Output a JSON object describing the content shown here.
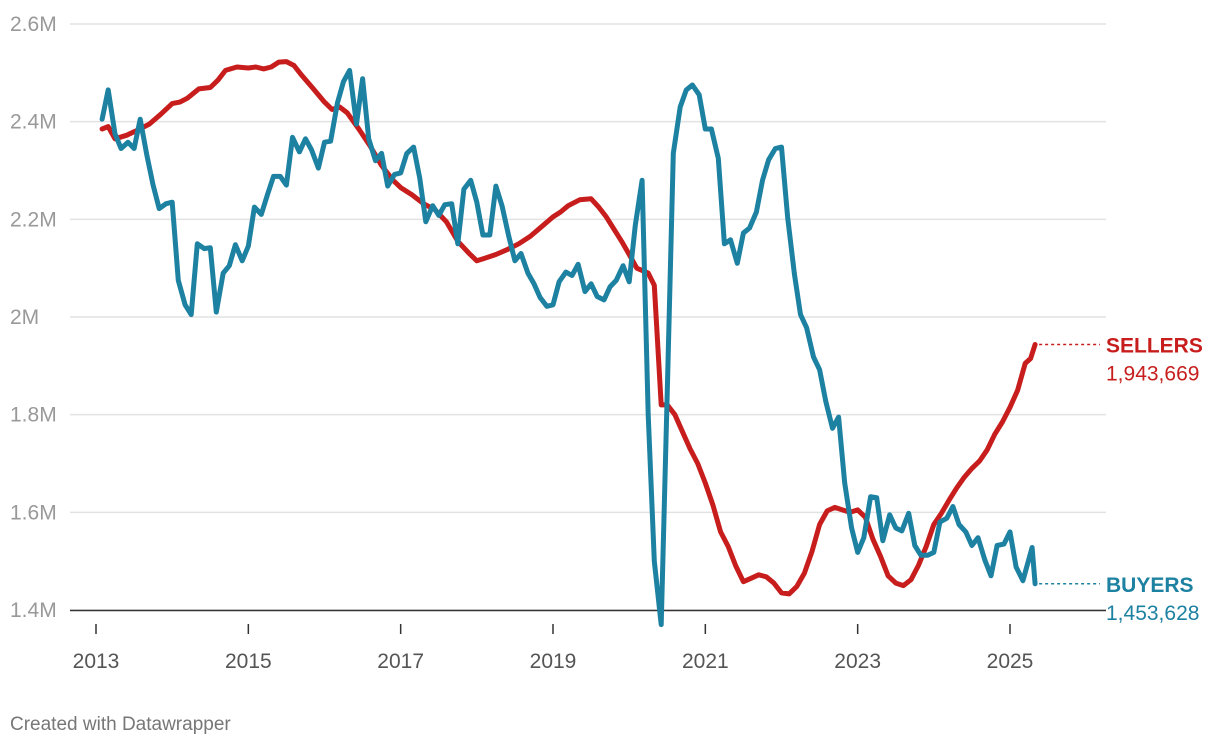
{
  "chart_data": {
    "type": "line",
    "ylim": [
      1400000,
      2600000
    ],
    "y_ticks": [
      {
        "value": 1400000,
        "label": "1.4M"
      },
      {
        "value": 1600000,
        "label": "1.6M"
      },
      {
        "value": 1800000,
        "label": "1.8M"
      },
      {
        "value": 2000000,
        "label": "2M"
      },
      {
        "value": 2200000,
        "label": "2.2M"
      },
      {
        "value": 2400000,
        "label": "2.4M"
      },
      {
        "value": 2600000,
        "label": "2.6M"
      }
    ],
    "xlim": [
      2012.6,
      2026.1
    ],
    "x_ticks": [
      {
        "value": 2013,
        "label": "2013"
      },
      {
        "value": 2015,
        "label": "2015"
      },
      {
        "value": 2017,
        "label": "2017"
      },
      {
        "value": 2019,
        "label": "2019"
      },
      {
        "value": 2021,
        "label": "2021"
      },
      {
        "value": 2023,
        "label": "2023"
      },
      {
        "value": 2025,
        "label": "2025"
      }
    ],
    "series": [
      {
        "name": "SELLERS",
        "end_value_label": "1,943,669",
        "color": "#c71e1d",
        "points": [
          [
            2013.08,
            2385000
          ],
          [
            2013.16,
            2390000
          ],
          [
            2013.25,
            2365000
          ],
          [
            2013.4,
            2372000
          ],
          [
            2013.55,
            2383000
          ],
          [
            2013.7,
            2395000
          ],
          [
            2013.85,
            2415000
          ],
          [
            2014.0,
            2437000
          ],
          [
            2014.1,
            2440000
          ],
          [
            2014.2,
            2448000
          ],
          [
            2014.35,
            2467000
          ],
          [
            2014.5,
            2470000
          ],
          [
            2014.6,
            2485000
          ],
          [
            2014.7,
            2505000
          ],
          [
            2014.85,
            2512000
          ],
          [
            2015.0,
            2510000
          ],
          [
            2015.1,
            2512000
          ],
          [
            2015.2,
            2508000
          ],
          [
            2015.3,
            2512000
          ],
          [
            2015.4,
            2522000
          ],
          [
            2015.5,
            2523000
          ],
          [
            2015.6,
            2515000
          ],
          [
            2015.7,
            2495000
          ],
          [
            2015.85,
            2468000
          ],
          [
            2016.0,
            2440000
          ],
          [
            2016.1,
            2425000
          ],
          [
            2016.2,
            2430000
          ],
          [
            2016.3,
            2418000
          ],
          [
            2016.45,
            2385000
          ],
          [
            2016.6,
            2350000
          ],
          [
            2016.75,
            2310000
          ],
          [
            2016.9,
            2280000
          ],
          [
            2017.0,
            2265000
          ],
          [
            2017.15,
            2250000
          ],
          [
            2017.3,
            2232000
          ],
          [
            2017.45,
            2220000
          ],
          [
            2017.6,
            2195000
          ],
          [
            2017.75,
            2155000
          ],
          [
            2017.9,
            2130000
          ],
          [
            2018.0,
            2115000
          ],
          [
            2018.1,
            2120000
          ],
          [
            2018.25,
            2128000
          ],
          [
            2018.4,
            2138000
          ],
          [
            2018.55,
            2150000
          ],
          [
            2018.7,
            2165000
          ],
          [
            2018.85,
            2185000
          ],
          [
            2019.0,
            2205000
          ],
          [
            2019.1,
            2215000
          ],
          [
            2019.2,
            2228000
          ],
          [
            2019.35,
            2240000
          ],
          [
            2019.5,
            2242000
          ],
          [
            2019.6,
            2225000
          ],
          [
            2019.7,
            2205000
          ],
          [
            2019.8,
            2180000
          ],
          [
            2019.9,
            2155000
          ],
          [
            2020.0,
            2128000
          ],
          [
            2020.1,
            2100000
          ],
          [
            2020.25,
            2090000
          ],
          [
            2020.33,
            2065000
          ],
          [
            2020.42,
            1820000
          ],
          [
            2020.5,
            1820000
          ],
          [
            2020.6,
            1800000
          ],
          [
            2020.7,
            1765000
          ],
          [
            2020.8,
            1730000
          ],
          [
            2020.9,
            1700000
          ],
          [
            2021.0,
            1660000
          ],
          [
            2021.1,
            1615000
          ],
          [
            2021.2,
            1560000
          ],
          [
            2021.3,
            1530000
          ],
          [
            2021.4,
            1490000
          ],
          [
            2021.5,
            1458000
          ],
          [
            2021.6,
            1465000
          ],
          [
            2021.7,
            1472000
          ],
          [
            2021.8,
            1468000
          ],
          [
            2021.9,
            1455000
          ],
          [
            2022.0,
            1435000
          ],
          [
            2022.1,
            1433000
          ],
          [
            2022.2,
            1448000
          ],
          [
            2022.3,
            1475000
          ],
          [
            2022.4,
            1520000
          ],
          [
            2022.5,
            1575000
          ],
          [
            2022.6,
            1603000
          ],
          [
            2022.7,
            1610000
          ],
          [
            2022.8,
            1605000
          ],
          [
            2022.9,
            1600000
          ],
          [
            2023.0,
            1605000
          ],
          [
            2023.1,
            1590000
          ],
          [
            2023.2,
            1545000
          ],
          [
            2023.3,
            1510000
          ],
          [
            2023.4,
            1470000
          ],
          [
            2023.5,
            1455000
          ],
          [
            2023.6,
            1450000
          ],
          [
            2023.7,
            1462000
          ],
          [
            2023.8,
            1492000
          ],
          [
            2023.9,
            1530000
          ],
          [
            2024.0,
            1575000
          ],
          [
            2024.1,
            1598000
          ],
          [
            2024.2,
            1625000
          ],
          [
            2024.3,
            1650000
          ],
          [
            2024.4,
            1672000
          ],
          [
            2024.5,
            1690000
          ],
          [
            2024.6,
            1705000
          ],
          [
            2024.7,
            1728000
          ],
          [
            2024.8,
            1760000
          ],
          [
            2024.9,
            1785000
          ],
          [
            2025.0,
            1815000
          ],
          [
            2025.1,
            1850000
          ],
          [
            2025.2,
            1905000
          ],
          [
            2025.27,
            1915000
          ],
          [
            2025.33,
            1943669
          ]
        ]
      },
      {
        "name": "BUYERS",
        "end_value_label": "1,453,628",
        "color": "#1d81a2",
        "points": [
          [
            2013.08,
            2405000
          ],
          [
            2013.16,
            2465000
          ],
          [
            2013.25,
            2375000
          ],
          [
            2013.33,
            2345000
          ],
          [
            2013.42,
            2358000
          ],
          [
            2013.5,
            2345000
          ],
          [
            2013.58,
            2405000
          ],
          [
            2013.67,
            2330000
          ],
          [
            2013.75,
            2270000
          ],
          [
            2013.83,
            2222000
          ],
          [
            2013.92,
            2232000
          ],
          [
            2014.0,
            2235000
          ],
          [
            2014.08,
            2075000
          ],
          [
            2014.17,
            2025000
          ],
          [
            2014.25,
            2005000
          ],
          [
            2014.33,
            2150000
          ],
          [
            2014.42,
            2140000
          ],
          [
            2014.5,
            2142000
          ],
          [
            2014.58,
            2010000
          ],
          [
            2014.67,
            2090000
          ],
          [
            2014.75,
            2105000
          ],
          [
            2014.83,
            2148000
          ],
          [
            2014.92,
            2115000
          ],
          [
            2015.0,
            2145000
          ],
          [
            2015.08,
            2225000
          ],
          [
            2015.17,
            2210000
          ],
          [
            2015.25,
            2250000
          ],
          [
            2015.33,
            2288000
          ],
          [
            2015.42,
            2288000
          ],
          [
            2015.5,
            2270000
          ],
          [
            2015.58,
            2368000
          ],
          [
            2015.67,
            2338000
          ],
          [
            2015.75,
            2365000
          ],
          [
            2015.83,
            2342000
          ],
          [
            2015.92,
            2305000
          ],
          [
            2016.0,
            2358000
          ],
          [
            2016.08,
            2360000
          ],
          [
            2016.17,
            2438000
          ],
          [
            2016.25,
            2482000
          ],
          [
            2016.33,
            2505000
          ],
          [
            2016.42,
            2395000
          ],
          [
            2016.5,
            2488000
          ],
          [
            2016.58,
            2365000
          ],
          [
            2016.67,
            2320000
          ],
          [
            2016.75,
            2335000
          ],
          [
            2016.83,
            2268000
          ],
          [
            2016.92,
            2292000
          ],
          [
            2017.0,
            2295000
          ],
          [
            2017.08,
            2335000
          ],
          [
            2017.17,
            2348000
          ],
          [
            2017.25,
            2285000
          ],
          [
            2017.33,
            2195000
          ],
          [
            2017.42,
            2228000
          ],
          [
            2017.5,
            2208000
          ],
          [
            2017.58,
            2230000
          ],
          [
            2017.67,
            2232000
          ],
          [
            2017.75,
            2150000
          ],
          [
            2017.83,
            2262000
          ],
          [
            2017.92,
            2280000
          ],
          [
            2018.0,
            2235000
          ],
          [
            2018.08,
            2168000
          ],
          [
            2018.17,
            2168000
          ],
          [
            2018.25,
            2268000
          ],
          [
            2018.33,
            2228000
          ],
          [
            2018.42,
            2165000
          ],
          [
            2018.5,
            2115000
          ],
          [
            2018.58,
            2130000
          ],
          [
            2018.67,
            2090000
          ],
          [
            2018.75,
            2068000
          ],
          [
            2018.83,
            2040000
          ],
          [
            2018.92,
            2022000
          ],
          [
            2019.0,
            2025000
          ],
          [
            2019.08,
            2072000
          ],
          [
            2019.17,
            2092000
          ],
          [
            2019.25,
            2085000
          ],
          [
            2019.33,
            2108000
          ],
          [
            2019.42,
            2052000
          ],
          [
            2019.5,
            2068000
          ],
          [
            2019.58,
            2042000
          ],
          [
            2019.67,
            2035000
          ],
          [
            2019.75,
            2062000
          ],
          [
            2019.83,
            2075000
          ],
          [
            2019.92,
            2105000
          ],
          [
            2020.0,
            2072000
          ],
          [
            2020.08,
            2188000
          ],
          [
            2020.17,
            2280000
          ],
          [
            2020.25,
            1800000
          ],
          [
            2020.33,
            1500000
          ],
          [
            2020.42,
            1370000
          ],
          [
            2020.5,
            1850000
          ],
          [
            2020.58,
            2335000
          ],
          [
            2020.67,
            2430000
          ],
          [
            2020.75,
            2465000
          ],
          [
            2020.83,
            2475000
          ],
          [
            2020.92,
            2455000
          ],
          [
            2021.0,
            2385000
          ],
          [
            2021.08,
            2385000
          ],
          [
            2021.17,
            2325000
          ],
          [
            2021.25,
            2150000
          ],
          [
            2021.33,
            2158000
          ],
          [
            2021.42,
            2110000
          ],
          [
            2021.5,
            2172000
          ],
          [
            2021.58,
            2182000
          ],
          [
            2021.67,
            2215000
          ],
          [
            2021.75,
            2280000
          ],
          [
            2021.83,
            2322000
          ],
          [
            2021.92,
            2345000
          ],
          [
            2022.0,
            2348000
          ],
          [
            2022.08,
            2205000
          ],
          [
            2022.17,
            2088000
          ],
          [
            2022.25,
            2005000
          ],
          [
            2022.33,
            1978000
          ],
          [
            2022.42,
            1918000
          ],
          [
            2022.5,
            1892000
          ],
          [
            2022.58,
            1828000
          ],
          [
            2022.67,
            1772000
          ],
          [
            2022.75,
            1795000
          ],
          [
            2022.83,
            1660000
          ],
          [
            2022.92,
            1568000
          ],
          [
            2023.0,
            1518000
          ],
          [
            2023.08,
            1548000
          ],
          [
            2023.17,
            1632000
          ],
          [
            2023.25,
            1630000
          ],
          [
            2023.33,
            1542000
          ],
          [
            2023.42,
            1595000
          ],
          [
            2023.5,
            1568000
          ],
          [
            2023.58,
            1562000
          ],
          [
            2023.67,
            1598000
          ],
          [
            2023.75,
            1532000
          ],
          [
            2023.83,
            1512000
          ],
          [
            2023.92,
            1512000
          ],
          [
            2024.0,
            1518000
          ],
          [
            2024.08,
            1580000
          ],
          [
            2024.17,
            1588000
          ],
          [
            2024.25,
            1612000
          ],
          [
            2024.33,
            1575000
          ],
          [
            2024.42,
            1560000
          ],
          [
            2024.5,
            1532000
          ],
          [
            2024.58,
            1548000
          ],
          [
            2024.67,
            1502000
          ],
          [
            2024.75,
            1470000
          ],
          [
            2024.83,
            1532000
          ],
          [
            2024.92,
            1535000
          ],
          [
            2025.0,
            1560000
          ],
          [
            2025.08,
            1488000
          ],
          [
            2025.17,
            1460000
          ],
          [
            2025.25,
            1505000
          ],
          [
            2025.29,
            1528000
          ],
          [
            2025.33,
            1453628
          ]
        ]
      }
    ]
  },
  "footer": {
    "credit": "Created with Datawrapper"
  }
}
